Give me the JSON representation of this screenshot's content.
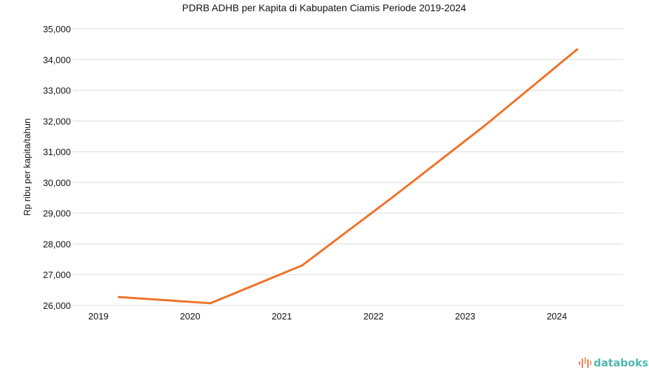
{
  "chart_data": {
    "type": "line",
    "title": "PDRB ADHB per Kapita di Kabupaten Ciamis Periode 2019-2024",
    "xlabel": "",
    "ylabel": "Rp ribu per kapita/tahun",
    "categories": [
      "2019",
      "2020",
      "2021",
      "2022",
      "2023",
      "2024"
    ],
    "series": [
      {
        "name": "PDRB ADHB per Kapita",
        "values": [
          26270,
          26070,
          27300,
          29550,
          31870,
          34330
        ],
        "color": "#f07128"
      }
    ],
    "ylim": [
      26000,
      35000
    ],
    "yticks": [
      26000,
      27000,
      28000,
      29000,
      30000,
      31000,
      32000,
      33000,
      34000,
      35000
    ],
    "ytick_labels": [
      "26,000",
      "27,000",
      "28,000",
      "29,000",
      "30,000",
      "31,000",
      "32,000",
      "33,000",
      "34,000",
      "35,000"
    ],
    "grid": true,
    "legend": "none"
  },
  "brand": {
    "logo_text": "databoks",
    "logo_color": "#4fb8b0"
  }
}
